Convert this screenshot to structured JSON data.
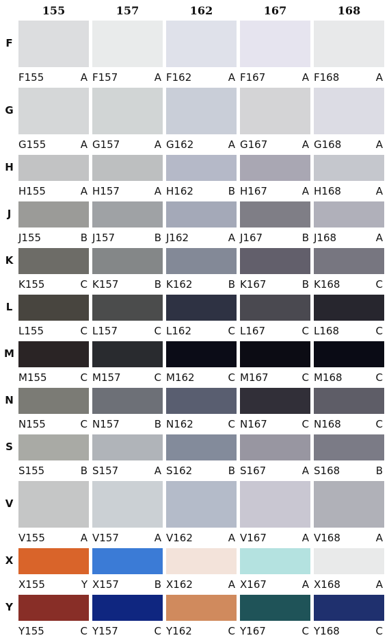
{
  "columns": [
    "155",
    "157",
    "162",
    "167",
    "168"
  ],
  "rows": [
    {
      "label": "F",
      "cells": [
        {
          "code": "F155",
          "grade": "A",
          "color": "#dcdddf"
        },
        {
          "code": "F157",
          "grade": "A",
          "color": "#e9ebeb"
        },
        {
          "code": "F162",
          "grade": "A",
          "color": "#dfe1ea"
        },
        {
          "code": "F167",
          "grade": "A",
          "color": "#e6e4ef"
        },
        {
          "code": "F168",
          "grade": "A",
          "color": "#e8e9ea"
        }
      ]
    },
    {
      "label": "G",
      "cells": [
        {
          "code": "G155",
          "grade": "A",
          "color": "#d5d7d8"
        },
        {
          "code": "G157",
          "grade": "A",
          "color": "#d1d5d5"
        },
        {
          "code": "G162",
          "grade": "A",
          "color": "#c9ced8"
        },
        {
          "code": "G167",
          "grade": "A",
          "color": "#d4d4d6"
        },
        {
          "code": "G168",
          "grade": "A",
          "color": "#dcdce4"
        }
      ]
    },
    {
      "label": "H",
      "cells": [
        {
          "code": "H155",
          "grade": "A",
          "color": "#c2c3c4"
        },
        {
          "code": "H157",
          "grade": "A",
          "color": "#bdbfc0"
        },
        {
          "code": "H162",
          "grade": "B",
          "color": "#b5b9c8"
        },
        {
          "code": "H167",
          "grade": "A",
          "color": "#a9a7b3"
        },
        {
          "code": "H168",
          "grade": "A",
          "color": "#c5c7cd"
        }
      ]
    },
    {
      "label": "J",
      "cells": [
        {
          "code": "J155",
          "grade": "B",
          "color": "#9b9b98"
        },
        {
          "code": "J157",
          "grade": "B",
          "color": "#9fa2a5"
        },
        {
          "code": "J162",
          "grade": "A",
          "color": "#a4a9b8"
        },
        {
          "code": "J167",
          "grade": "B",
          "color": "#7f7e86"
        },
        {
          "code": "J168",
          "grade": "A",
          "color": "#b0b0ba"
        }
      ]
    },
    {
      "label": "K",
      "cells": [
        {
          "code": "K155",
          "grade": "C",
          "color": "#6d6c67"
        },
        {
          "code": "K157",
          "grade": "B",
          "color": "#848788"
        },
        {
          "code": "K162",
          "grade": "B",
          "color": "#838997"
        },
        {
          "code": "K167",
          "grade": "B",
          "color": "#625f6b"
        },
        {
          "code": "K168",
          "grade": "C",
          "color": "#777680"
        }
      ]
    },
    {
      "label": "L",
      "cells": [
        {
          "code": "L155",
          "grade": "C",
          "color": "#48453f"
        },
        {
          "code": "L157",
          "grade": "C",
          "color": "#4b4c4c"
        },
        {
          "code": "L162",
          "grade": "C",
          "color": "#2e3243"
        },
        {
          "code": "L167",
          "grade": "C",
          "color": "#4a4950"
        },
        {
          "code": "L168",
          "grade": "C",
          "color": "#27262e"
        }
      ]
    },
    {
      "label": "M",
      "cells": [
        {
          "code": "M155",
          "grade": "C",
          "color": "#2a2425"
        },
        {
          "code": "M157",
          "grade": "C",
          "color": "#292b2f"
        },
        {
          "code": "M162",
          "grade": "C",
          "color": "#0b0c17"
        },
        {
          "code": "M167",
          "grade": "C",
          "color": "#0c0c14"
        },
        {
          "code": "M168",
          "grade": "C",
          "color": "#0a0b15"
        }
      ]
    },
    {
      "label": "N",
      "cells": [
        {
          "code": "N155",
          "grade": "C",
          "color": "#7b7b75"
        },
        {
          "code": "N157",
          "grade": "B",
          "color": "#6d7077"
        },
        {
          "code": "N162",
          "grade": "C",
          "color": "#595e70"
        },
        {
          "code": "N167",
          "grade": "C",
          "color": "#312f38"
        },
        {
          "code": "N168",
          "grade": "C",
          "color": "#5e5d67"
        }
      ]
    },
    {
      "label": "S",
      "cells": [
        {
          "code": "S155",
          "grade": "B",
          "color": "#a9aaa5"
        },
        {
          "code": "S157",
          "grade": "A",
          "color": "#b0b4b9"
        },
        {
          "code": "S162",
          "grade": "B",
          "color": "#838b9b"
        },
        {
          "code": "S167",
          "grade": "A",
          "color": "#9896a1"
        },
        {
          "code": "S168",
          "grade": "B",
          "color": "#7b7b86"
        }
      ]
    },
    {
      "label": "V",
      "cells": [
        {
          "code": "V155",
          "grade": "A",
          "color": "#c5c6c6"
        },
        {
          "code": "V157",
          "grade": "A",
          "color": "#cbd0d4"
        },
        {
          "code": "V162",
          "grade": "A",
          "color": "#b4bbc9"
        },
        {
          "code": "V167",
          "grade": "A",
          "color": "#c9c7d2"
        },
        {
          "code": "V168",
          "grade": "A",
          "color": "#b0b1b8"
        }
      ]
    },
    {
      "label": "X",
      "cells": [
        {
          "code": "X155",
          "grade": "Y",
          "color": "#d9642a"
        },
        {
          "code": "X157",
          "grade": "B",
          "color": "#3b7bd6"
        },
        {
          "code": "X162",
          "grade": "A",
          "color": "#f3e3da"
        },
        {
          "code": "X167",
          "grade": "A",
          "color": "#b4e2e0"
        },
        {
          "code": "X168",
          "grade": "A",
          "color": "#e9eaea"
        }
      ]
    },
    {
      "label": "Y",
      "cells": [
        {
          "code": "Y155",
          "grade": "C",
          "color": "#882e27"
        },
        {
          "code": "Y157",
          "grade": "C",
          "color": "#0f2680"
        },
        {
          "code": "Y162",
          "grade": "C",
          "color": "#d08a5d"
        },
        {
          "code": "Y167",
          "grade": "C",
          "color": "#1f5358"
        },
        {
          "code": "Y168",
          "grade": "C",
          "color": "#1f306e"
        }
      ]
    }
  ]
}
